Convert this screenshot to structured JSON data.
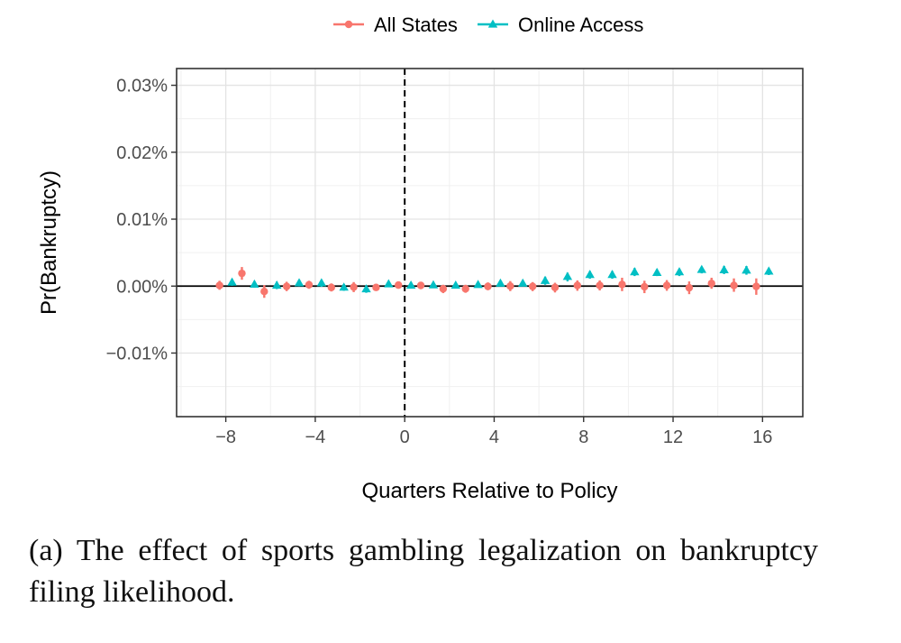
{
  "chart_data": {
    "type": "scatter",
    "title": "",
    "xlabel": "Quarters Relative to Policy",
    "ylabel": "Pr(Bankruptcy)",
    "xlim": [
      -10.2,
      17.8
    ],
    "ylim": [
      -0.0195,
      0.0325
    ],
    "xticks": [
      -8,
      -4,
      0,
      4,
      8,
      12,
      16
    ],
    "xtick_labels": [
      "−8",
      "−4",
      "0",
      "4",
      "8",
      "12",
      "16"
    ],
    "yticks": [
      -0.01,
      0.0,
      0.01,
      0.02,
      0.03
    ],
    "ytick_labels": [
      "−0.01%",
      "0.00%",
      "0.01%",
      "0.02%",
      "0.03%"
    ],
    "grid": true,
    "legend_position": "top",
    "reference_lines": [
      {
        "axis": "x",
        "value": 0,
        "style": "dashed"
      },
      {
        "axis": "y",
        "value": 0,
        "style": "solid"
      }
    ],
    "series": [
      {
        "name": "All States",
        "marker": "circle",
        "color": "#F8766D",
        "x": [
          -8,
          -7,
          -6,
          -5,
          -4,
          -3,
          -2,
          -1,
          0,
          1,
          2,
          3,
          4,
          5,
          6,
          7,
          8,
          9,
          10,
          11,
          12,
          13,
          14,
          15,
          16
        ],
        "y": [
          0.0001,
          0.0019,
          -0.0008,
          -5e-05,
          0.0002,
          -0.0002,
          -0.00015,
          -0.0002,
          0.00015,
          0.0001,
          -0.0004,
          -0.0004,
          -5e-05,
          0.0,
          -5e-05,
          -0.0002,
          0.0001,
          0.0001,
          0.00025,
          -0.0001,
          0.0001,
          -0.00025,
          0.0004,
          0.0001,
          -5e-05
        ],
        "lower": [
          -0.00055,
          0.00095,
          -0.00175,
          -0.00075,
          -0.0004,
          -0.0008,
          -0.0009,
          -0.0007,
          -0.00035,
          -0.00045,
          -0.00105,
          -0.001,
          -0.0006,
          -0.00075,
          -0.00075,
          -0.00095,
          -0.0007,
          -0.00065,
          -0.00075,
          -0.00105,
          -0.0007,
          -0.0012,
          -0.0004,
          -0.00085,
          -0.0013
        ],
        "upper": [
          0.0008,
          0.00285,
          0.00015,
          0.00065,
          0.0008,
          0.0004,
          0.0006,
          0.0003,
          0.0007,
          0.0006,
          0.0002,
          0.0002,
          0.00055,
          0.00075,
          0.0006,
          0.0005,
          0.00085,
          0.00085,
          0.00125,
          0.0008,
          0.0009,
          0.0007,
          0.00125,
          0.00115,
          0.00115
        ]
      },
      {
        "name": "Online Access",
        "marker": "triangle",
        "color": "#00BFC4",
        "x": [
          -8,
          -7,
          -6,
          -5,
          -4,
          -3,
          -2,
          -1,
          0,
          1,
          2,
          3,
          4,
          5,
          6,
          7,
          8,
          9,
          10,
          11,
          12,
          13,
          14,
          15,
          16
        ],
        "y": [
          0.00055,
          0.00025,
          0.0001,
          0.00045,
          0.00045,
          -0.0002,
          -0.00045,
          0.0003,
          0.0001,
          0.00015,
          0.0001,
          0.0002,
          0.0004,
          0.0004,
          0.0008,
          0.0014,
          0.0017,
          0.0017,
          0.0021,
          0.002,
          0.0021,
          0.00245,
          0.0024,
          0.00235,
          0.0022
        ],
        "lower": [
          5e-05,
          -0.00025,
          -0.00045,
          -5e-05,
          -0.0001,
          -0.0007,
          -0.001,
          -0.0001,
          -0.0002,
          -0.0002,
          -0.0003,
          -0.0002,
          0.0,
          5e-05,
          0.0002,
          0.0007,
          0.0011,
          0.0011,
          0.0015,
          0.0015,
          0.0015,
          0.0019,
          0.0018,
          0.0017,
          0.00165
        ],
        "upper": [
          0.00105,
          0.00075,
          0.00065,
          0.00095,
          0.00095,
          0.0003,
          0.0001,
          0.00065,
          0.0006,
          0.0005,
          0.00055,
          0.0006,
          0.00075,
          0.0008,
          0.0014,
          0.002,
          0.00225,
          0.00225,
          0.0027,
          0.0025,
          0.0026,
          0.0029,
          0.003,
          0.003,
          0.0027
        ]
      }
    ],
    "series_offsets_note_excluded": true
  },
  "caption": {
    "text": "(a) The effect of sports gambling legalization on bankruptcy filing likelihood."
  }
}
